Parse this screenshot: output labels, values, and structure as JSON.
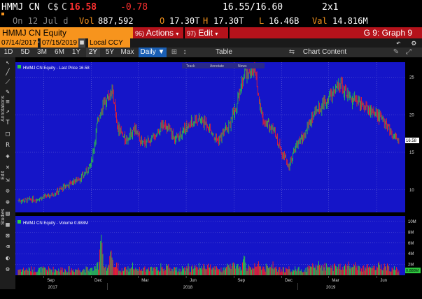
{
  "header": {
    "ticker": "HMMJ CN",
    "currency": "C$",
    "c_label": "C",
    "last": "16.58",
    "change": "-0.78",
    "spread_label": "16.55/16.60",
    "size_label": "2x1",
    "as_of_label": "On 12 Jul d",
    "vol_label": "Vol",
    "vol_value": "887,592",
    "open_label": "O",
    "open_value": "17.30T",
    "high_label": "H",
    "high_value": "17.30T",
    "low_label": "L",
    "low_value": "16.46B",
    "val_label": "Val",
    "val_value": "14.816M"
  },
  "toolbar": {
    "security": "HMMJ CN Equity",
    "actions_num": "96)",
    "actions_label": "Actions",
    "edit_num": "97)",
    "edit_label": "Edit",
    "graph_label": "G 9: Graph 9"
  },
  "dates": {
    "start": "07/14/2017",
    "end": "07/15/2019",
    "currency": "Local CCY"
  },
  "ranges": [
    "1D",
    "5D",
    "3M",
    "6M",
    "1Y",
    "2Y",
    "5Y",
    "Max"
  ],
  "selected_range": "2Y",
  "frequency": "Daily",
  "table_label": "Table",
  "chart_content_label": "Chart Content",
  "sidebar_labels": {
    "annotations": "Annotations",
    "edit": "Edit",
    "studies": "Studies"
  },
  "legend": {
    "track": "Track",
    "annotate": "Annotate",
    "news": "News"
  },
  "price_panel": {
    "label": "HMMJ CN Equity - Last Price 16.58",
    "last_tag": "16.58"
  },
  "volume_panel": {
    "label": "HMMJ CN Equity - Volume 0.888M",
    "last_tag": "0.888M"
  },
  "colors": {
    "panel_bg": "#1515c8",
    "orange": "#f7941d",
    "red": "#b5121b",
    "up": "#2ecc40",
    "down": "#ff2020"
  },
  "chart_data": [
    {
      "type": "line",
      "series": [
        {
          "name": "HMMJ CN Equity - Last Price",
          "style": "candlestick"
        }
      ],
      "x": [
        "2017-07-14",
        "2017-08-15",
        "2017-09-15",
        "2017-10-15",
        "2017-11-15",
        "2017-12-01",
        "2017-12-15",
        "2018-01-10",
        "2018-01-20",
        "2018-02-05",
        "2018-02-20",
        "2018-03-10",
        "2018-04-01",
        "2018-04-20",
        "2018-05-10",
        "2018-06-01",
        "2018-06-20",
        "2018-07-10",
        "2018-08-01",
        "2018-08-20",
        "2018-09-05",
        "2018-09-20",
        "2018-10-10",
        "2018-10-25",
        "2018-11-15",
        "2018-12-01",
        "2018-12-15",
        "2018-12-28",
        "2019-01-15",
        "2019-02-01",
        "2019-02-20",
        "2019-03-10",
        "2019-03-25",
        "2019-04-10",
        "2019-05-01",
        "2019-05-20",
        "2019-06-10",
        "2019-06-25",
        "2019-07-12"
      ],
      "y": [
        8.6,
        8.7,
        9.3,
        10.6,
        11.8,
        13.5,
        20.0,
        23.5,
        18.5,
        16.5,
        18.2,
        16.2,
        17.0,
        19.0,
        16.8,
        18.2,
        19.5,
        18.8,
        16.5,
        18.5,
        21.0,
        25.5,
        26.0,
        19.5,
        18.0,
        15.0,
        13.2,
        15.8,
        17.5,
        20.2,
        21.5,
        23.0,
        24.0,
        22.5,
        21.5,
        20.5,
        19.5,
        18.0,
        16.58
      ],
      "ylim": [
        7,
        27
      ],
      "y_ticks": [
        10,
        15,
        20,
        25
      ],
      "x_tick_labels": [
        "Sep",
        "Dec",
        "Mar",
        "Jun",
        "Sep",
        "Dec",
        "Mar",
        "Jun"
      ],
      "year_labels": [
        "2017",
        "2018",
        "2019"
      ],
      "grid": true
    },
    {
      "type": "bar",
      "series": [
        {
          "name": "HMMJ CN Equity - Volume"
        }
      ],
      "ylim": [
        0,
        10
      ],
      "y_ticks": [
        "2M",
        "4M",
        "6M",
        "8M",
        "10M"
      ],
      "peaks_millions": {
        "2017-12-20": 9.5,
        "2018-01-08": 6.5,
        "2018-09-20": 4.5,
        "2018-10-17": 3.2
      },
      "last_millions": 0.888
    }
  ]
}
